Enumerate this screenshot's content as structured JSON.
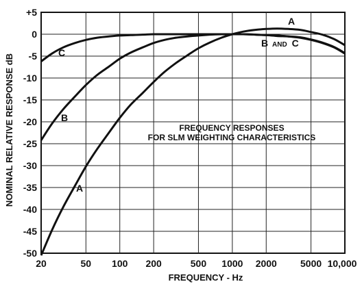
{
  "chart_data": {
    "type": "line",
    "x_scale": "log",
    "xlim": [
      20,
      10000
    ],
    "ylim": [
      -50,
      5
    ],
    "xlabel": "FREQUENCY - Hz",
    "ylabel": "NOMINAL RELATIVE RESPONSE dB",
    "x_ticks": [
      "20",
      "50",
      "100",
      "200",
      "500",
      "1000",
      "2000",
      "5000",
      "10,000"
    ],
    "y_ticks": [
      "+5",
      "0",
      "-5",
      "-10",
      "-15",
      "-20",
      "-25",
      "-30",
      "-35",
      "-40",
      "-45",
      "-50"
    ],
    "grid": true,
    "annotation": [
      "FREQUENCY RESPONSES",
      "FOR SLM WEIGHTING CHARACTERISTICS"
    ],
    "series": [
      {
        "name": "A",
        "x": [
          20,
          25,
          31.5,
          40,
          50,
          63,
          80,
          100,
          125,
          160,
          200,
          250,
          315,
          400,
          500,
          630,
          800,
          1000,
          1250,
          1600,
          2000,
          2500,
          3150,
          4000,
          5000,
          6300,
          8000,
          10000
        ],
        "y": [
          -50.5,
          -44.7,
          -39.4,
          -34.6,
          -30.2,
          -26.2,
          -22.5,
          -19.1,
          -16.1,
          -13.4,
          -10.9,
          -8.6,
          -6.6,
          -4.8,
          -3.2,
          -1.9,
          -0.8,
          0,
          0.6,
          1.0,
          1.2,
          1.3,
          1.2,
          1.0,
          0.5,
          -0.1,
          -1.1,
          -2.5
        ]
      },
      {
        "name": "B",
        "x": [
          20,
          25,
          31.5,
          40,
          50,
          63,
          80,
          100,
          125,
          160,
          200,
          250,
          315,
          400,
          500,
          630,
          800,
          1000,
          1250,
          1600,
          2000,
          2500,
          3150,
          4000,
          5000,
          6300,
          8000,
          10000
        ],
        "y": [
          -24.2,
          -20.4,
          -17.1,
          -14.2,
          -11.6,
          -9.3,
          -7.4,
          -5.6,
          -4.2,
          -3.0,
          -2.0,
          -1.3,
          -0.8,
          -0.5,
          -0.3,
          -0.1,
          0,
          0,
          0,
          -0.1,
          -0.2,
          -0.4,
          -0.5,
          -0.7,
          -1.2,
          -1.9,
          -2.9,
          -4.3
        ]
      },
      {
        "name": "C",
        "x": [
          20,
          25,
          31.5,
          40,
          50,
          63,
          80,
          100,
          125,
          160,
          200,
          250,
          315,
          400,
          500,
          630,
          800,
          1000,
          1250,
          1600,
          2000,
          2500,
          3150,
          4000,
          5000,
          6300,
          8000,
          10000
        ],
        "y": [
          -6.2,
          -4.4,
          -3.0,
          -2.0,
          -1.3,
          -0.8,
          -0.5,
          -0.3,
          -0.2,
          -0.1,
          0,
          0,
          0,
          0,
          0,
          0,
          0,
          0,
          0,
          -0.1,
          -0.2,
          -0.3,
          -0.5,
          -0.8,
          -1.3,
          -2.0,
          -3.0,
          -4.4
        ]
      }
    ],
    "curve_labels": {
      "A": "A",
      "B": "B",
      "C": "C",
      "BC_b": "B",
      "BC_and": "AND",
      "BC_c": "C"
    }
  }
}
